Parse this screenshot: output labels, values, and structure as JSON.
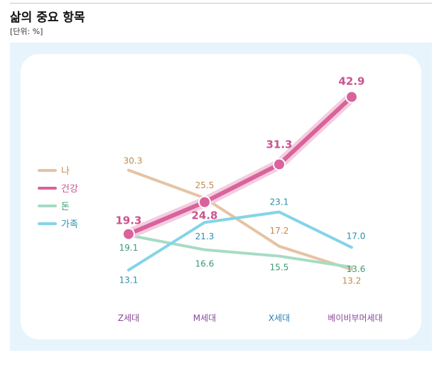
{
  "title": "삶의 중요 항목",
  "unit": "[단위: %]",
  "chart_data": {
    "type": "line",
    "title": "삶의 중요 항목",
    "unit_label": "[단위: %]",
    "categories": [
      "Z세대",
      "M세대",
      "X세대",
      "베이비부머세대"
    ],
    "xlabel": "",
    "ylabel": "",
    "ylim": [
      10,
      45
    ],
    "grid": false,
    "legend_position": "left",
    "series": [
      {
        "name": "나",
        "values": [
          30.3,
          25.5,
          17.2,
          13.2
        ],
        "color": "#e6c3a2",
        "label_color": "#c08a4e"
      },
      {
        "name": "건강",
        "values": [
          19.3,
          24.8,
          31.3,
          42.9
        ],
        "color": "#d9639b",
        "label_color": "#c9548e",
        "halo": "#f3cde0"
      },
      {
        "name": "돈",
        "values": [
          19.1,
          16.6,
          15.5,
          13.6
        ],
        "color": "#a6dcc4",
        "label_color": "#3a9a72"
      },
      {
        "name": "가족",
        "values": [
          13.1,
          21.3,
          23.1,
          17.0
        ],
        "color": "#84d4e8",
        "label_color": "#2a8fb0"
      }
    ],
    "category_colors": [
      "#8a4a9a",
      "#8a4a9a",
      "#2a7fbf",
      "#8a4a9a"
    ]
  }
}
